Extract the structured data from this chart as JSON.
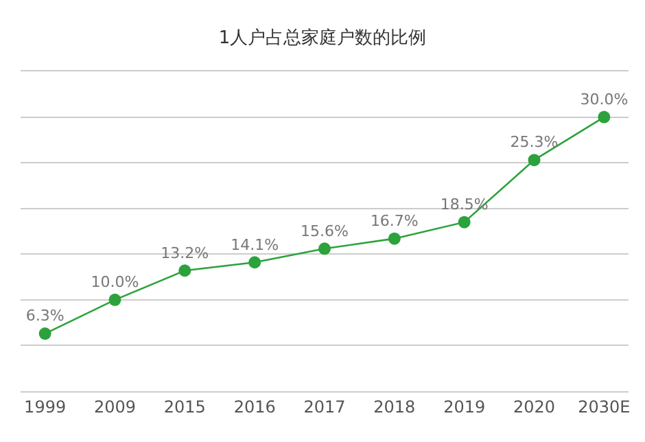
{
  "chart_data": {
    "type": "line",
    "title": "1人户占总家庭户数的比例",
    "categories": [
      "1999",
      "2009",
      "2015",
      "2016",
      "2017",
      "2018",
      "2019",
      "2020",
      "2030E"
    ],
    "series": [
      {
        "color": "#2ca23c",
        "values": [
          6.3,
          10.0,
          13.2,
          14.1,
          15.6,
          16.7,
          18.5,
          25.3,
          30.0
        ],
        "value_labels": [
          "6.3%",
          "10.0%",
          "13.2%",
          "14.1%",
          "15.6%",
          "16.7%",
          "18.5%",
          "25.3%",
          "30.0%"
        ]
      }
    ],
    "ylim": [
      0,
      35
    ],
    "yticks": [
      {
        "value": 0,
        "label": null
      },
      {
        "value": 5,
        "label": null
      },
      {
        "value": 10,
        "label": null
      },
      {
        "value": 15,
        "label": null
      },
      {
        "value": 20,
        "label": null
      },
      {
        "value": 25,
        "label": null
      },
      {
        "value": 30,
        "label": null
      },
      {
        "value": 35,
        "label": null
      }
    ],
    "grid": "y",
    "tick_labels": "x",
    "marker": "circle",
    "line_style": "solid",
    "legend": false
  }
}
